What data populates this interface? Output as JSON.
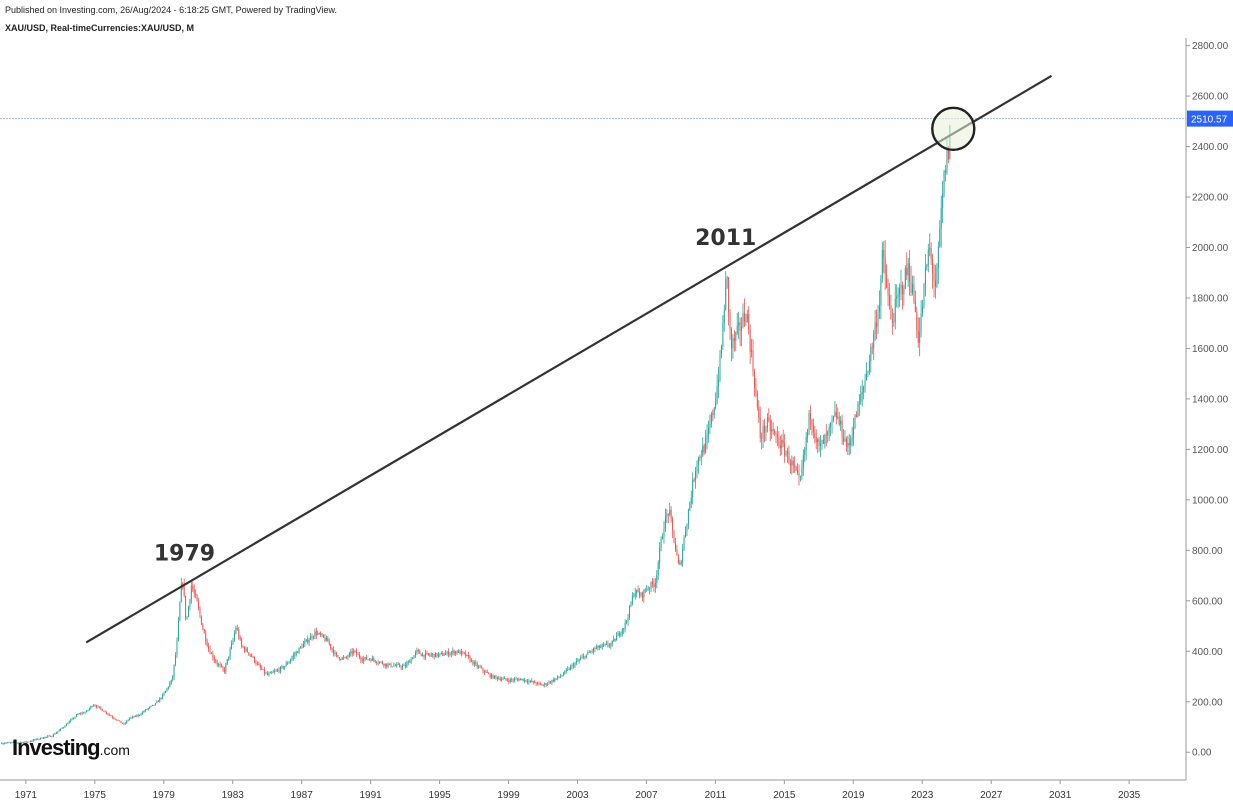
{
  "header": {
    "publish_line": "Published on Investing.com, 26/Aug/2024 - 6:18:25 GMT, Powered by TradingView.",
    "symbol_line": "XAU/USD, Real-timeCurrencies:XAU/USD, M"
  },
  "logo": {
    "main": "Investing",
    "suffix": ".com"
  },
  "colors": {
    "up": "#26a69a",
    "down": "#ef5350",
    "trendline": "#333333",
    "price_line": "#a9bde3",
    "price_badge": "#2962ff",
    "circle_fill": "#eaf1d8"
  },
  "chart_data": {
    "type": "candlestick",
    "instrument": "XAU/USD",
    "interval": "M",
    "current_price": 2510.57,
    "current_price_label": "2510.57",
    "y_ticks": [
      "0.00",
      "200.00",
      "400.00",
      "600.00",
      "800.00",
      "1000.00",
      "1200.00",
      "1400.00",
      "1600.00",
      "1800.00",
      "2000.00",
      "2200.00",
      "2400.00",
      "2600.00",
      "2800.00"
    ],
    "x_ticks": [
      "1971",
      "1975",
      "1979",
      "1983",
      "1987",
      "1991",
      "1995",
      "1999",
      "2003",
      "2007",
      "2011",
      "2015",
      "2019",
      "2023",
      "2027",
      "2031",
      "2035"
    ],
    "ylim": [
      -110,
      2830
    ],
    "xlim": [
      1969.5,
      2038.3
    ],
    "price_path": [
      [
        1969.6,
        36
      ],
      [
        1971.0,
        40
      ],
      [
        1972.0,
        58
      ],
      [
        1972.5,
        65
      ],
      [
        1973.0,
        90
      ],
      [
        1973.5,
        120
      ],
      [
        1974.0,
        150
      ],
      [
        1974.5,
        160
      ],
      [
        1974.9,
        190
      ],
      [
        1975.5,
        165
      ],
      [
        1976.0,
        140
      ],
      [
        1976.7,
        110
      ],
      [
        1977.0,
        135
      ],
      [
        1977.5,
        145
      ],
      [
        1978.0,
        170
      ],
      [
        1978.5,
        190
      ],
      [
        1979.0,
        230
      ],
      [
        1979.5,
        290
      ],
      [
        1979.75,
        420
      ],
      [
        1980.0,
        650
      ],
      [
        1980.1,
        680
      ],
      [
        1980.3,
        510
      ],
      [
        1980.6,
        660
      ],
      [
        1980.9,
        600
      ],
      [
        1981.3,
        480
      ],
      [
        1981.6,
        410
      ],
      [
        1982.0,
        360
      ],
      [
        1982.5,
        320
      ],
      [
        1983.0,
        440
      ],
      [
        1983.2,
        500
      ],
      [
        1983.5,
        420
      ],
      [
        1984.0,
        390
      ],
      [
        1984.5,
        340
      ],
      [
        1985.0,
        305
      ],
      [
        1985.5,
        320
      ],
      [
        1986.0,
        340
      ],
      [
        1986.5,
        380
      ],
      [
        1987.0,
        420
      ],
      [
        1987.8,
        475
      ],
      [
        1988.5,
        440
      ],
      [
        1989.0,
        380
      ],
      [
        1989.5,
        370
      ],
      [
        1990.0,
        400
      ],
      [
        1990.5,
        370
      ],
      [
        1991.0,
        370
      ],
      [
        1992.0,
        345
      ],
      [
        1993.0,
        340
      ],
      [
        1993.7,
        400
      ],
      [
        1994.0,
        385
      ],
      [
        1995.0,
        385
      ],
      [
        1996.0,
        400
      ],
      [
        1996.5,
        385
      ],
      [
        1997.0,
        350
      ],
      [
        1997.5,
        325
      ],
      [
        1998.0,
        300
      ],
      [
        1999.0,
        285
      ],
      [
        1999.7,
        290
      ],
      [
        2000.0,
        285
      ],
      [
        2001.0,
        265
      ],
      [
        2002.0,
        300
      ],
      [
        2003.0,
        360
      ],
      [
        2004.0,
        410
      ],
      [
        2005.0,
        430
      ],
      [
        2005.8,
        510
      ],
      [
        2006.3,
        640
      ],
      [
        2006.7,
        620
      ],
      [
        2007.0,
        650
      ],
      [
        2007.5,
        670
      ],
      [
        2008.0,
        900
      ],
      [
        2008.3,
        960
      ],
      [
        2008.9,
        720
      ],
      [
        2009.3,
        900
      ],
      [
        2009.9,
        1150
      ],
      [
        2010.5,
        1230
      ],
      [
        2011.0,
        1400
      ],
      [
        2011.3,
        1560
      ],
      [
        2011.65,
        1900
      ],
      [
        2011.9,
        1600
      ],
      [
        2012.3,
        1660
      ],
      [
        2012.8,
        1750
      ],
      [
        2013.3,
        1450
      ],
      [
        2013.6,
        1250
      ],
      [
        2014.0,
        1300
      ],
      [
        2014.5,
        1250
      ],
      [
        2015.0,
        1200
      ],
      [
        2015.5,
        1130
      ],
      [
        2015.9,
        1060
      ],
      [
        2016.5,
        1350
      ],
      [
        2017.0,
        1200
      ],
      [
        2017.5,
        1250
      ],
      [
        2018.0,
        1340
      ],
      [
        2018.7,
        1200
      ],
      [
        2019.0,
        1290
      ],
      [
        2019.5,
        1420
      ],
      [
        2020.0,
        1580
      ],
      [
        2020.5,
        1780
      ],
      [
        2020.7,
        1970
      ],
      [
        2021.2,
        1700
      ],
      [
        2021.6,
        1800
      ],
      [
        2022.2,
        1920
      ],
      [
        2022.5,
        1800
      ],
      [
        2022.8,
        1630
      ],
      [
        2023.2,
        1900
      ],
      [
        2023.4,
        2000
      ],
      [
        2023.8,
        1830
      ],
      [
        2024.0,
        2040
      ],
      [
        2024.3,
        2300
      ],
      [
        2024.55,
        2400
      ],
      [
        2024.65,
        2510
      ]
    ],
    "trendline": {
      "from": [
        1974.5,
        435
      ],
      "to": [
        2030.5,
        2680
      ]
    },
    "annotations": [
      {
        "text": "1979",
        "x": 1980.2,
        "y": 760
      },
      {
        "text": "2011",
        "x": 2011.6,
        "y": 2010
      }
    ],
    "highlight": {
      "x": 2024.8,
      "y": 2470
    }
  }
}
